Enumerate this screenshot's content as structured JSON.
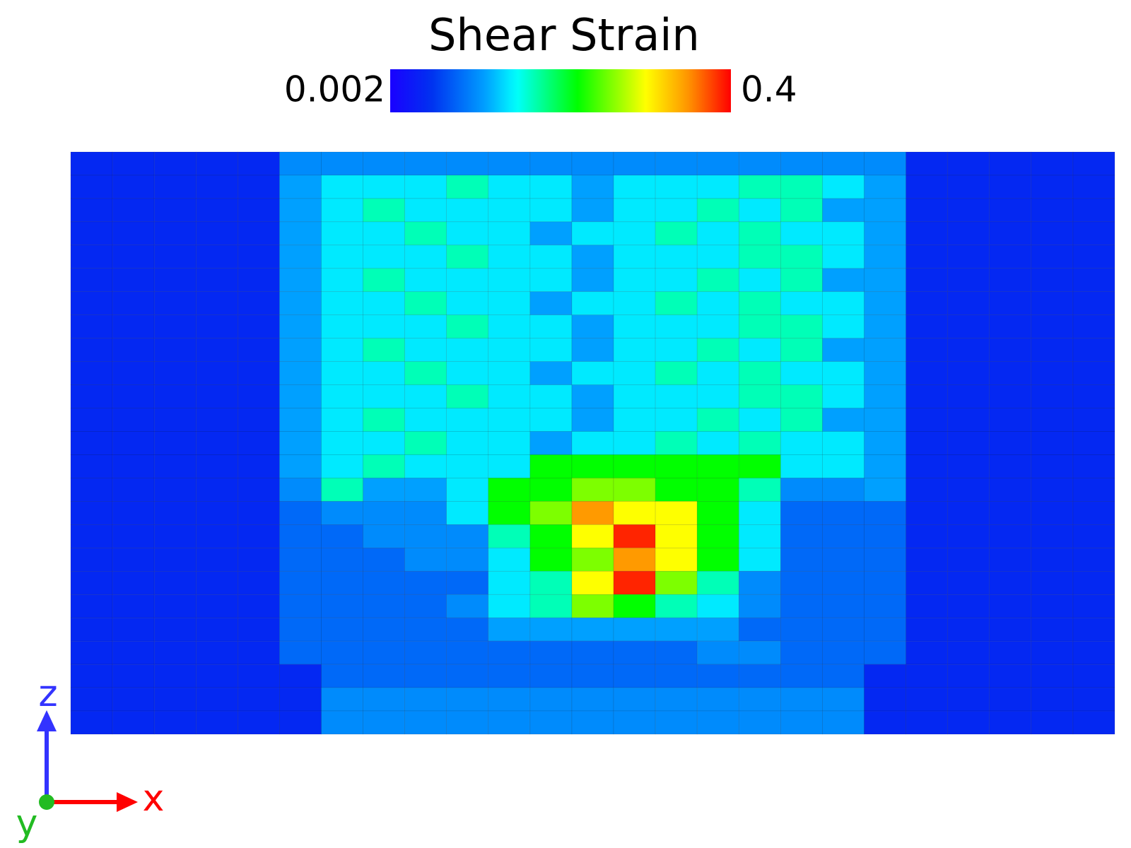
{
  "chart_data": {
    "type": "heatmap",
    "title": "Shear Strain",
    "zlim": [
      0.002,
      0.4
    ],
    "colorbar_ticks": [
      0.002,
      0.4
    ],
    "log_scale": true,
    "axes_labels": {
      "z": "z",
      "x": "x",
      "y": "y"
    },
    "values": [
      [
        0.0034,
        0.0034,
        0.0034,
        0.0034,
        0.0034,
        0.0075,
        0.0075,
        0.0075,
        0.0075,
        0.0075,
        0.0075,
        0.0075,
        0.0075,
        0.0075,
        0.0075,
        0.0075,
        0.0075,
        0.0075,
        0.0075,
        0.0075,
        0.0034,
        0.0034,
        0.0034,
        0.0034,
        0.0034
      ],
      [
        0.0034,
        0.0034,
        0.0034,
        0.0034,
        0.0034,
        0.0088,
        0.0128,
        0.0128,
        0.0128,
        0.0186,
        0.0128,
        0.0128,
        0.0088,
        0.0128,
        0.0128,
        0.0128,
        0.0186,
        0.0186,
        0.0128,
        0.0088,
        0.0034,
        0.0034,
        0.0034,
        0.0034,
        0.0034
      ],
      [
        0.0034,
        0.0034,
        0.0034,
        0.0034,
        0.0034,
        0.0088,
        0.0128,
        0.0186,
        0.0128,
        0.0128,
        0.0128,
        0.0128,
        0.0088,
        0.0128,
        0.0128,
        0.0186,
        0.0128,
        0.0186,
        0.0088,
        0.0088,
        0.0034,
        0.0034,
        0.0034,
        0.0034,
        0.0034
      ],
      [
        0.0034,
        0.0034,
        0.0034,
        0.0034,
        0.0034,
        0.0088,
        0.0128,
        0.0128,
        0.0186,
        0.0128,
        0.0128,
        0.0088,
        0.0128,
        0.0128,
        0.0186,
        0.0128,
        0.0186,
        0.0128,
        0.0128,
        0.0088,
        0.0034,
        0.0034,
        0.0034,
        0.0034,
        0.0034
      ],
      [
        0.0034,
        0.0034,
        0.0034,
        0.0034,
        0.0034,
        0.0088,
        0.0128,
        0.0128,
        0.0128,
        0.0186,
        0.0128,
        0.0128,
        0.0088,
        0.0128,
        0.0128,
        0.0128,
        0.0186,
        0.0186,
        0.0128,
        0.0088,
        0.0034,
        0.0034,
        0.0034,
        0.0034,
        0.0034
      ],
      [
        0.0034,
        0.0034,
        0.0034,
        0.0034,
        0.0034,
        0.0088,
        0.0128,
        0.0186,
        0.0128,
        0.0128,
        0.0128,
        0.0128,
        0.0088,
        0.0128,
        0.0128,
        0.0186,
        0.0128,
        0.0186,
        0.0088,
        0.0088,
        0.0034,
        0.0034,
        0.0034,
        0.0034,
        0.0034
      ],
      [
        0.0034,
        0.0034,
        0.0034,
        0.0034,
        0.0034,
        0.0088,
        0.0128,
        0.0128,
        0.0186,
        0.0128,
        0.0128,
        0.0088,
        0.0128,
        0.0128,
        0.0186,
        0.0128,
        0.0186,
        0.0128,
        0.0128,
        0.0088,
        0.0034,
        0.0034,
        0.0034,
        0.0034,
        0.0034
      ],
      [
        0.0034,
        0.0034,
        0.0034,
        0.0034,
        0.0034,
        0.0088,
        0.0128,
        0.0128,
        0.0128,
        0.0186,
        0.0128,
        0.0128,
        0.0088,
        0.0128,
        0.0128,
        0.0128,
        0.0186,
        0.0186,
        0.0128,
        0.0088,
        0.0034,
        0.0034,
        0.0034,
        0.0034,
        0.0034
      ],
      [
        0.0034,
        0.0034,
        0.0034,
        0.0034,
        0.0034,
        0.0088,
        0.0128,
        0.0186,
        0.0128,
        0.0128,
        0.0128,
        0.0128,
        0.0088,
        0.0128,
        0.0128,
        0.0186,
        0.0128,
        0.0186,
        0.0088,
        0.0088,
        0.0034,
        0.0034,
        0.0034,
        0.0034,
        0.0034
      ],
      [
        0.0034,
        0.0034,
        0.0034,
        0.0034,
        0.0034,
        0.0088,
        0.0128,
        0.0128,
        0.0186,
        0.0128,
        0.0128,
        0.0088,
        0.0128,
        0.0128,
        0.0186,
        0.0128,
        0.0186,
        0.0128,
        0.0128,
        0.0088,
        0.0034,
        0.0034,
        0.0034,
        0.0034,
        0.0034
      ],
      [
        0.0034,
        0.0034,
        0.0034,
        0.0034,
        0.0034,
        0.0088,
        0.0128,
        0.0128,
        0.0128,
        0.0186,
        0.0128,
        0.0128,
        0.0088,
        0.0128,
        0.0128,
        0.0128,
        0.0186,
        0.0186,
        0.0128,
        0.0088,
        0.0034,
        0.0034,
        0.0034,
        0.0034,
        0.0034
      ],
      [
        0.0034,
        0.0034,
        0.0034,
        0.0034,
        0.0034,
        0.0088,
        0.0128,
        0.0186,
        0.0128,
        0.0128,
        0.0128,
        0.0128,
        0.0088,
        0.0128,
        0.0128,
        0.0186,
        0.0128,
        0.0186,
        0.0088,
        0.0088,
        0.0034,
        0.0034,
        0.0034,
        0.0034,
        0.0034
      ],
      [
        0.0034,
        0.0034,
        0.0034,
        0.0034,
        0.0034,
        0.0088,
        0.0128,
        0.0128,
        0.0186,
        0.0128,
        0.0128,
        0.0088,
        0.0128,
        0.0128,
        0.0186,
        0.0128,
        0.0186,
        0.0128,
        0.0128,
        0.0088,
        0.0034,
        0.0034,
        0.0034,
        0.0034,
        0.0034
      ],
      [
        0.0034,
        0.0034,
        0.0034,
        0.0034,
        0.0034,
        0.0088,
        0.0128,
        0.0186,
        0.0128,
        0.0128,
        0.0128,
        0.037,
        0.037,
        0.037,
        0.037,
        0.037,
        0.037,
        0.0128,
        0.0128,
        0.0088,
        0.0034,
        0.0034,
        0.0034,
        0.0034,
        0.0034
      ],
      [
        0.0034,
        0.0034,
        0.0034,
        0.0034,
        0.0034,
        0.0075,
        0.0186,
        0.0088,
        0.0088,
        0.0128,
        0.037,
        0.037,
        0.062,
        0.062,
        0.037,
        0.037,
        0.0186,
        0.0075,
        0.0075,
        0.0088,
        0.0034,
        0.0034,
        0.0034,
        0.0034,
        0.0034
      ],
      [
        0.0034,
        0.0034,
        0.0034,
        0.0034,
        0.0034,
        0.0058,
        0.0075,
        0.0075,
        0.0075,
        0.0128,
        0.037,
        0.062,
        0.2,
        0.106,
        0.106,
        0.037,
        0.0128,
        0.0058,
        0.0058,
        0.0058,
        0.0034,
        0.0034,
        0.0034,
        0.0034,
        0.0034
      ],
      [
        0.0034,
        0.0034,
        0.0034,
        0.0034,
        0.0034,
        0.0058,
        0.0058,
        0.0075,
        0.0075,
        0.0075,
        0.0186,
        0.037,
        0.106,
        0.34,
        0.106,
        0.037,
        0.0128,
        0.0058,
        0.0058,
        0.0058,
        0.0034,
        0.0034,
        0.0034,
        0.0034,
        0.0034
      ],
      [
        0.0034,
        0.0034,
        0.0034,
        0.0034,
        0.0034,
        0.0058,
        0.0058,
        0.0058,
        0.0075,
        0.0075,
        0.0128,
        0.037,
        0.062,
        0.2,
        0.106,
        0.037,
        0.0128,
        0.0058,
        0.0058,
        0.0058,
        0.0034,
        0.0034,
        0.0034,
        0.0034,
        0.0034
      ],
      [
        0.0034,
        0.0034,
        0.0034,
        0.0034,
        0.0034,
        0.0058,
        0.0058,
        0.0058,
        0.0058,
        0.0058,
        0.0128,
        0.0186,
        0.106,
        0.34,
        0.062,
        0.0186,
        0.0075,
        0.0058,
        0.0058,
        0.0058,
        0.0034,
        0.0034,
        0.0034,
        0.0034,
        0.0034
      ],
      [
        0.0034,
        0.0034,
        0.0034,
        0.0034,
        0.0034,
        0.0058,
        0.0058,
        0.0058,
        0.0058,
        0.0075,
        0.0128,
        0.0186,
        0.062,
        0.037,
        0.0186,
        0.0128,
        0.0075,
        0.0058,
        0.0058,
        0.0058,
        0.0034,
        0.0034,
        0.0034,
        0.0034,
        0.0034
      ],
      [
        0.0034,
        0.0034,
        0.0034,
        0.0034,
        0.0034,
        0.0058,
        0.0058,
        0.0058,
        0.0058,
        0.0058,
        0.0088,
        0.0088,
        0.0088,
        0.0088,
        0.0088,
        0.0088,
        0.0058,
        0.0058,
        0.0058,
        0.0058,
        0.0034,
        0.0034,
        0.0034,
        0.0034,
        0.0034
      ],
      [
        0.0034,
        0.0034,
        0.0034,
        0.0034,
        0.0034,
        0.0058,
        0.0058,
        0.0058,
        0.0058,
        0.0058,
        0.0058,
        0.0058,
        0.0058,
        0.0058,
        0.0058,
        0.0075,
        0.0075,
        0.0058,
        0.0058,
        0.0058,
        0.0034,
        0.0034,
        0.0034,
        0.0034,
        0.0034
      ],
      [
        0.0034,
        0.0034,
        0.0034,
        0.0034,
        0.0034,
        0.0034,
        0.0058,
        0.0058,
        0.0058,
        0.0058,
        0.0058,
        0.0058,
        0.0058,
        0.0058,
        0.0058,
        0.0058,
        0.0058,
        0.0058,
        0.0058,
        0.0034,
        0.0034,
        0.0034,
        0.0034,
        0.0034,
        0.0034
      ],
      [
        0.0034,
        0.0034,
        0.0034,
        0.0034,
        0.0034,
        0.0034,
        0.0075,
        0.0075,
        0.0075,
        0.0075,
        0.0075,
        0.0075,
        0.0075,
        0.0075,
        0.0075,
        0.0075,
        0.0075,
        0.0075,
        0.0075,
        0.0034,
        0.0034,
        0.0034,
        0.0034,
        0.0034,
        0.0034
      ],
      [
        0.0034,
        0.0034,
        0.0034,
        0.0034,
        0.0034,
        0.0034,
        0.0075,
        0.0075,
        0.0075,
        0.0075,
        0.0075,
        0.0075,
        0.0075,
        0.0075,
        0.0075,
        0.0075,
        0.0075,
        0.0075,
        0.0075,
        0.0034,
        0.0034,
        0.0034,
        0.0034,
        0.0034,
        0.0034
      ]
    ]
  }
}
